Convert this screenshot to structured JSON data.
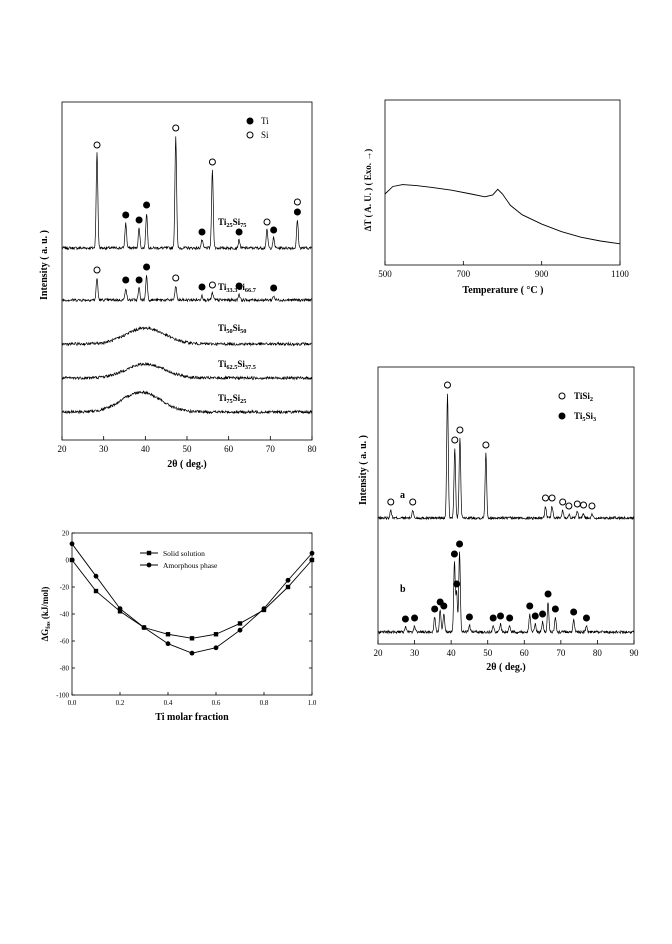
{
  "chart_data": [
    {
      "id": "xrd_tisi",
      "type": "line",
      "xlabel": "2θ ( deg.)",
      "ylabel": "Intensity ( a. u. )",
      "xlim": [
        20,
        80
      ],
      "xticks": [
        20,
        30,
        40,
        50,
        60,
        70,
        80
      ],
      "legend": [
        {
          "symbol": "filled-circle",
          "label": "Ti"
        },
        {
          "symbol": "open-circle",
          "label": "Si"
        }
      ],
      "legend_position": "top-right",
      "series": [
        {
          "label_main": "Ti",
          "label_sub1": "25",
          "label_mid": "Si",
          "label_sub2": "75",
          "peaks": [
            [
              28.4,
              95
            ],
            [
              35.3,
              25
            ],
            [
              38.5,
              20
            ],
            [
              40.3,
              35
            ],
            [
              47.3,
              112
            ],
            [
              53.6,
              8
            ],
            [
              56.1,
              78
            ],
            [
              62.5,
              8
            ],
            [
              69.2,
              18
            ],
            [
              70.8,
              10
            ],
            [
              76.5,
              28
            ]
          ],
          "markers": [
            {
              "x": 28.4,
              "symbol": "open"
            },
            {
              "x": 35.3,
              "symbol": "filled"
            },
            {
              "x": 38.5,
              "symbol": "filled"
            },
            {
              "x": 40.3,
              "symbol": "filled"
            },
            {
              "x": 47.3,
              "symbol": "open"
            },
            {
              "x": 53.6,
              "symbol": "filled"
            },
            {
              "x": 56.1,
              "symbol": "open"
            },
            {
              "x": 62.5,
              "symbol": "filled"
            },
            {
              "x": 69.2,
              "symbol": "open"
            },
            {
              "x": 70.8,
              "symbol": "filled"
            },
            {
              "x": 76.5,
              "symbol": "open"
            },
            {
              "x": 76.5,
              "symbol": "filled"
            }
          ]
        },
        {
          "label_main": "Ti",
          "label_sub1": "33.3",
          "label_mid": "Si",
          "label_sub2": "66.7",
          "peaks": [
            [
              28.4,
              22
            ],
            [
              35.3,
              12
            ],
            [
              38.5,
              12
            ],
            [
              40.3,
              25
            ],
            [
              47.3,
              14
            ],
            [
              53.6,
              5
            ],
            [
              56.1,
              7
            ],
            [
              62.5,
              6
            ],
            [
              70.8,
              4
            ]
          ],
          "markers": [
            {
              "x": 28.4,
              "symbol": "open"
            },
            {
              "x": 35.3,
              "symbol": "filled"
            },
            {
              "x": 38.5,
              "symbol": "filled"
            },
            {
              "x": 40.3,
              "symbol": "filled"
            },
            {
              "x": 47.3,
              "symbol": "open"
            },
            {
              "x": 53.6,
              "symbol": "filled"
            },
            {
              "x": 56.1,
              "symbol": "open"
            },
            {
              "x": 62.5,
              "symbol": "filled"
            },
            {
              "x": 70.8,
              "symbol": "filled"
            }
          ]
        },
        {
          "label_main": "Ti",
          "label_sub1": "50",
          "label_mid": "Si",
          "label_sub2": "50",
          "hump_center": 40,
          "hump_height": 16
        },
        {
          "label_main": "Ti",
          "label_sub1": "62.5",
          "label_mid": "Si",
          "label_sub2": "37.5",
          "hump_center": 40,
          "hump_height": 14
        },
        {
          "label_main": "Ti",
          "label_sub1": "75",
          "label_mid": "Si",
          "label_sub2": "25",
          "hump_center": 39,
          "hump_height": 20
        }
      ]
    },
    {
      "id": "dsc",
      "type": "line",
      "xlabel": "Temperature ( °C )",
      "ylabel": "ΔT ( A. U. )   ( Exo. →)",
      "xlim": [
        500,
        1100
      ],
      "xticks": [
        500,
        700,
        900,
        1100
      ],
      "points": [
        [
          500,
          100
        ],
        [
          520,
          92
        ],
        [
          545,
          90
        ],
        [
          580,
          91
        ],
        [
          620,
          93
        ],
        [
          670,
          96
        ],
        [
          720,
          100
        ],
        [
          755,
          103
        ],
        [
          775,
          101
        ],
        [
          788,
          95
        ],
        [
          800,
          100
        ],
        [
          820,
          112
        ],
        [
          850,
          122
        ],
        [
          900,
          132
        ],
        [
          950,
          140
        ],
        [
          1000,
          146
        ],
        [
          1050,
          150
        ],
        [
          1100,
          153
        ]
      ]
    },
    {
      "id": "xrd_milled",
      "type": "line",
      "xlabel": "2θ ( deg.)",
      "ylabel": "Intensity ( a. u. )",
      "xlim": [
        20,
        90
      ],
      "xticks": [
        20,
        30,
        40,
        50,
        60,
        70,
        80,
        90
      ],
      "legend": [
        {
          "symbol": "open-circle",
          "label_main": "TiSi",
          "label_sub": "2"
        },
        {
          "symbol": "filled-circle",
          "label_main": "Ti",
          "label_sub": "5",
          "label_mid": "Si",
          "label_sub2": "3"
        }
      ],
      "legend_position": "top-right",
      "series": [
        {
          "label": "a",
          "peaks": [
            [
              23.5,
              8
            ],
            [
              29.5,
              8
            ],
            [
              39.0,
              125
            ],
            [
              41.0,
              70
            ],
            [
              42.4,
              80
            ],
            [
              49.5,
              65
            ],
            [
              65.8,
              12
            ],
            [
              67.6,
              12
            ],
            [
              70.5,
              8
            ],
            [
              72.2,
              4
            ],
            [
              74.5,
              6
            ],
            [
              76.2,
              5
            ],
            [
              78.5,
              4
            ]
          ],
          "markers": [
            23.5,
            29.5,
            39.0,
            41.0,
            42.4,
            49.5,
            65.8,
            67.6,
            70.5,
            72.2,
            74.5,
            76.2,
            78.5
          ]
        },
        {
          "label": "b",
          "peaks": [
            [
              27.5,
              5
            ],
            [
              30.0,
              6
            ],
            [
              35.5,
              15
            ],
            [
              37.0,
              22
            ],
            [
              38.0,
              18
            ],
            [
              40.9,
              70
            ],
            [
              41.5,
              40
            ],
            [
              42.3,
              80
            ],
            [
              45.0,
              7
            ],
            [
              51.5,
              6
            ],
            [
              53.5,
              8
            ],
            [
              56.0,
              6
            ],
            [
              61.5,
              18
            ],
            [
              63.0,
              8
            ],
            [
              65.0,
              10
            ],
            [
              66.5,
              30
            ],
            [
              68.5,
              15
            ],
            [
              73.5,
              12
            ],
            [
              77.0,
              6
            ]
          ],
          "markers": [
            27.5,
            30.0,
            35.5,
            37.0,
            38.0,
            40.9,
            41.5,
            42.3,
            45.0,
            51.5,
            53.5,
            56.0,
            61.5,
            63.0,
            65.0,
            66.5,
            68.5,
            73.5,
            77.0
          ]
        }
      ]
    },
    {
      "id": "gibbs",
      "type": "line",
      "xlabel": "Ti molar fraction",
      "ylabel": "ΔG (kJ/mol)",
      "ylabel_sub": "fos",
      "xlim": [
        0.0,
        1.0
      ],
      "ylim": [
        -100,
        20
      ],
      "xticks": [
        0.0,
        0.2,
        0.4,
        0.6,
        0.8,
        1.0
      ],
      "yticks": [
        20,
        0,
        -20,
        -40,
        -60,
        -80,
        -100
      ],
      "legend_position": "top-center",
      "series": [
        {
          "name": "Solid solution",
          "marker": "square",
          "x": [
            0.0,
            0.1,
            0.2,
            0.3,
            0.4,
            0.5,
            0.6,
            0.7,
            0.8,
            0.9,
            1.0
          ],
          "y": [
            0,
            -23,
            -38,
            -50,
            -55,
            -58,
            -55,
            -47,
            -37,
            -20,
            0
          ]
        },
        {
          "name": "Amorphous phase",
          "marker": "circle",
          "x": [
            0.0,
            0.1,
            0.2,
            0.3,
            0.4,
            0.5,
            0.6,
            0.7,
            0.8,
            0.9,
            1.0
          ],
          "y": [
            12,
            -12,
            -36,
            -50,
            -62,
            -69,
            -65,
            -52,
            -36,
            -15,
            5
          ]
        }
      ]
    }
  ]
}
